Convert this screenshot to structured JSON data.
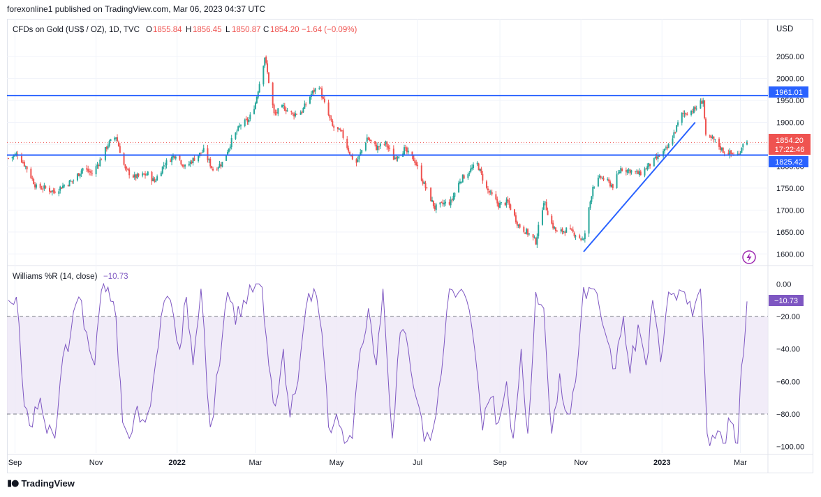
{
  "publisher_line": "forexonline1 published on TradingView.com, Mar 06, 2023 04:37 UTC",
  "footer_brand": "TradingView",
  "colors": {
    "up": "#26a69a",
    "down": "#ef5350",
    "hline": "#2962ff",
    "trend": "#2962ff",
    "wr_line": "#7e57c2",
    "wr_band": "#ede7f6"
  },
  "header": {
    "symbol": "CFDs on Gold (US$ / OZ), 1D, TVC",
    "o_label": "O",
    "o_value": "1855.84",
    "h_label": "H",
    "h_value": "1856.45",
    "l_label": "L",
    "l_value": "1850.87",
    "c_label": "C",
    "c_value": "1854.20",
    "change": "−1.64 (−0.09%)"
  },
  "currency": "USD",
  "badges": {
    "level_upper": "1961.01",
    "price": "1854.20",
    "countdown": "17:22:46",
    "level_lower": "1825.42",
    "wr_value": "−10.73"
  },
  "indicator": {
    "title": "Williams %R (14, close)",
    "value": "−10.73"
  },
  "chart_data": [
    {
      "type": "candlestick",
      "symbol": "CFDs on Gold (US$ / OZ), 1D, TVC",
      "y_axis_ticks": [
        2050,
        2000,
        1950,
        1900,
        1850,
        1800,
        1750,
        1700,
        1650,
        1600
      ],
      "y_axis_labels": [
        "2050.00",
        "2000.00",
        "1950.00",
        "1900.00",
        "1850.00",
        "1800.00",
        "1750.00",
        "1700.00",
        "1650.00",
        "1600.00"
      ],
      "ylim": [
        1575,
        2090
      ],
      "x_axis_labels": [
        "Sep",
        "Nov",
        "2022",
        "Mar",
        "May",
        "Jul",
        "Sep",
        "Nov",
        "2023",
        "Mar"
      ],
      "x_axis_bold": [
        "2022",
        "2023"
      ],
      "x_axis_dates": [
        "2021-09-01",
        "2021-11-01",
        "2022-01-01",
        "2022-03-01",
        "2022-05-01",
        "2022-07-01",
        "2022-09-01",
        "2022-11-01",
        "2023-01-01",
        "2023-03-01"
      ],
      "date_range": [
        "2021-08-27",
        "2023-03-06"
      ],
      "horizontal_levels": [
        1961.01,
        1825.42
      ],
      "last_price": 1854.2,
      "trendline": {
        "start": [
          "2022-11-03",
          1605
        ],
        "end": [
          "2023-01-26",
          1900
        ]
      },
      "close_path": [
        [
          "2021-08-27",
          1818
        ],
        [
          "2021-09-03",
          1828
        ],
        [
          "2021-09-10",
          1795
        ],
        [
          "2021-09-17",
          1752
        ],
        [
          "2021-09-24",
          1750
        ],
        [
          "2021-09-30",
          1742
        ],
        [
          "2021-10-08",
          1757
        ],
        [
          "2021-10-15",
          1768
        ],
        [
          "2021-10-22",
          1795
        ],
        [
          "2021-10-29",
          1783
        ],
        [
          "2021-11-05",
          1818
        ],
        [
          "2021-11-10",
          1850
        ],
        [
          "2021-11-16",
          1868
        ],
        [
          "2021-11-23",
          1792
        ],
        [
          "2021-11-30",
          1775
        ],
        [
          "2021-12-10",
          1782
        ],
        [
          "2021-12-15",
          1765
        ],
        [
          "2021-12-22",
          1803
        ],
        [
          "2021-12-31",
          1828
        ],
        [
          "2022-01-07",
          1797
        ],
        [
          "2022-01-14",
          1818
        ],
        [
          "2022-01-21",
          1835
        ],
        [
          "2022-01-28",
          1792
        ],
        [
          "2022-02-04",
          1808
        ],
        [
          "2022-02-11",
          1858
        ],
        [
          "2022-02-18",
          1895
        ],
        [
          "2022-02-24",
          1905
        ],
        [
          "2022-03-01",
          1945
        ],
        [
          "2022-03-08",
          2050
        ],
        [
          "2022-03-15",
          1918
        ],
        [
          "2022-03-22",
          1935
        ],
        [
          "2022-03-29",
          1918
        ],
        [
          "2022-04-05",
          1925
        ],
        [
          "2022-04-12",
          1965
        ],
        [
          "2022-04-18",
          1985
        ],
        [
          "2022-04-21",
          1950
        ],
        [
          "2022-04-28",
          1890
        ],
        [
          "2022-05-05",
          1875
        ],
        [
          "2022-05-12",
          1822
        ],
        [
          "2022-05-16",
          1808
        ],
        [
          "2022-05-24",
          1865
        ],
        [
          "2022-05-31",
          1842
        ],
        [
          "2022-06-07",
          1852
        ],
        [
          "2022-06-13",
          1818
        ],
        [
          "2022-06-21",
          1838
        ],
        [
          "2022-06-29",
          1812
        ],
        [
          "2022-07-05",
          1765
        ],
        [
          "2022-07-14",
          1705
        ],
        [
          "2022-07-21",
          1715
        ],
        [
          "2022-07-26",
          1718
        ],
        [
          "2022-08-02",
          1768
        ],
        [
          "2022-08-10",
          1792
        ],
        [
          "2022-08-15",
          1805
        ],
        [
          "2022-08-22",
          1748
        ],
        [
          "2022-08-31",
          1712
        ],
        [
          "2022-09-07",
          1718
        ],
        [
          "2022-09-15",
          1665
        ],
        [
          "2022-09-23",
          1645
        ],
        [
          "2022-09-28",
          1628
        ],
        [
          "2022-10-04",
          1722
        ],
        [
          "2022-10-10",
          1668
        ],
        [
          "2022-10-14",
          1648
        ],
        [
          "2022-10-21",
          1655
        ],
        [
          "2022-10-28",
          1645
        ],
        [
          "2022-11-03",
          1630
        ],
        [
          "2022-11-10",
          1755
        ],
        [
          "2022-11-16",
          1775
        ],
        [
          "2022-11-25",
          1755
        ],
        [
          "2022-12-01",
          1795
        ],
        [
          "2022-12-08",
          1790
        ],
        [
          "2022-12-15",
          1782
        ],
        [
          "2022-12-27",
          1815
        ],
        [
          "2023-01-05",
          1840
        ],
        [
          "2023-01-10",
          1875
        ],
        [
          "2023-01-16",
          1918
        ],
        [
          "2023-01-26",
          1930
        ],
        [
          "2023-02-01",
          1952
        ],
        [
          "2023-02-03",
          1865
        ],
        [
          "2023-02-09",
          1860
        ],
        [
          "2023-02-16",
          1835
        ],
        [
          "2023-02-22",
          1828
        ],
        [
          "2023-02-28",
          1826
        ],
        [
          "2023-03-03",
          1855
        ],
        [
          "2023-03-06",
          1854
        ]
      ]
    },
    {
      "type": "line",
      "name": "Williams %R (14, close)",
      "y_axis_ticks": [
        0,
        -20,
        -40,
        -60,
        -80,
        -100
      ],
      "y_axis_labels": [
        "0.00",
        "−20.00",
        "−40.00",
        "−60.00",
        "−80.00",
        "−100.00"
      ],
      "ylim": [
        -104,
        4
      ],
      "band": [
        -80,
        -20
      ],
      "last_value": -10.73,
      "path": [
        [
          "2021-08-27",
          -10
        ],
        [
          "2021-09-02",
          -8
        ],
        [
          "2021-09-08",
          -75
        ],
        [
          "2021-09-14",
          -88
        ],
        [
          "2021-09-20",
          -70
        ],
        [
          "2021-09-25",
          -92
        ],
        [
          "2021-10-01",
          -95
        ],
        [
          "2021-10-07",
          -45
        ],
        [
          "2021-10-13",
          -30
        ],
        [
          "2021-10-19",
          -8
        ],
        [
          "2021-10-25",
          -30
        ],
        [
          "2021-10-31",
          -50
        ],
        [
          "2021-11-05",
          -4
        ],
        [
          "2021-11-10",
          -2
        ],
        [
          "2021-11-16",
          -20
        ],
        [
          "2021-11-21",
          -85
        ],
        [
          "2021-11-26",
          -95
        ],
        [
          "2021-12-02",
          -75
        ],
        [
          "2021-12-08",
          -85
        ],
        [
          "2021-12-14",
          -60
        ],
        [
          "2021-12-20",
          -20
        ],
        [
          "2021-12-27",
          -10
        ],
        [
          "2022-01-03",
          -40
        ],
        [
          "2022-01-08",
          -8
        ],
        [
          "2022-01-13",
          -50
        ],
        [
          "2022-01-19",
          -3
        ],
        [
          "2022-01-26",
          -88
        ],
        [
          "2022-02-02",
          -50
        ],
        [
          "2022-02-08",
          -5
        ],
        [
          "2022-02-14",
          -25
        ],
        [
          "2022-02-20",
          -10
        ],
        [
          "2022-02-27",
          -5
        ],
        [
          "2022-03-06",
          -2
        ],
        [
          "2022-03-11",
          -50
        ],
        [
          "2022-03-16",
          -75
        ],
        [
          "2022-03-22",
          -40
        ],
        [
          "2022-03-27",
          -82
        ],
        [
          "2022-04-02",
          -60
        ],
        [
          "2022-04-08",
          -15
        ],
        [
          "2022-04-14",
          -3
        ],
        [
          "2022-04-20",
          -30
        ],
        [
          "2022-04-25",
          -88
        ],
        [
          "2022-05-01",
          -80
        ],
        [
          "2022-05-07",
          -98
        ],
        [
          "2022-05-13",
          -95
        ],
        [
          "2022-05-19",
          -40
        ],
        [
          "2022-05-25",
          -15
        ],
        [
          "2022-05-31",
          -50
        ],
        [
          "2022-06-05",
          -3
        ],
        [
          "2022-06-12",
          -95
        ],
        [
          "2022-06-18",
          -30
        ],
        [
          "2022-06-24",
          -40
        ],
        [
          "2022-06-30",
          -70
        ],
        [
          "2022-07-06",
          -97
        ],
        [
          "2022-07-13",
          -88
        ],
        [
          "2022-07-19",
          -55
        ],
        [
          "2022-07-25",
          -3
        ],
        [
          "2022-08-01",
          -5
        ],
        [
          "2022-08-07",
          -10
        ],
        [
          "2022-08-13",
          -40
        ],
        [
          "2022-08-19",
          -90
        ],
        [
          "2022-08-25",
          -70
        ],
        [
          "2022-08-31",
          -85
        ],
        [
          "2022-09-06",
          -60
        ],
        [
          "2022-09-11",
          -95
        ],
        [
          "2022-09-17",
          -40
        ],
        [
          "2022-09-22",
          -92
        ],
        [
          "2022-09-28",
          -5
        ],
        [
          "2022-10-04",
          -15
        ],
        [
          "2022-10-10",
          -92
        ],
        [
          "2022-10-16",
          -55
        ],
        [
          "2022-10-22",
          -80
        ],
        [
          "2022-10-28",
          -60
        ],
        [
          "2022-11-03",
          -2
        ],
        [
          "2022-11-09",
          -3
        ],
        [
          "2022-11-15",
          -15
        ],
        [
          "2022-11-21",
          -35
        ],
        [
          "2022-11-27",
          -52
        ],
        [
          "2022-12-03",
          -20
        ],
        [
          "2022-12-08",
          -55
        ],
        [
          "2022-12-14",
          -25
        ],
        [
          "2022-12-20",
          -50
        ],
        [
          "2022-12-25",
          -10
        ],
        [
          "2022-12-31",
          -48
        ],
        [
          "2023-01-06",
          -5
        ],
        [
          "2023-01-12",
          -10
        ],
        [
          "2023-01-18",
          -5
        ],
        [
          "2023-01-24",
          -20
        ],
        [
          "2023-01-30",
          -3
        ],
        [
          "2023-02-04",
          -92
        ],
        [
          "2023-02-10",
          -95
        ],
        [
          "2023-02-16",
          -98
        ],
        [
          "2023-02-22",
          -85
        ],
        [
          "2023-02-27",
          -98
        ],
        [
          "2023-03-02",
          -50
        ],
        [
          "2023-03-06",
          -10.73
        ]
      ]
    }
  ]
}
